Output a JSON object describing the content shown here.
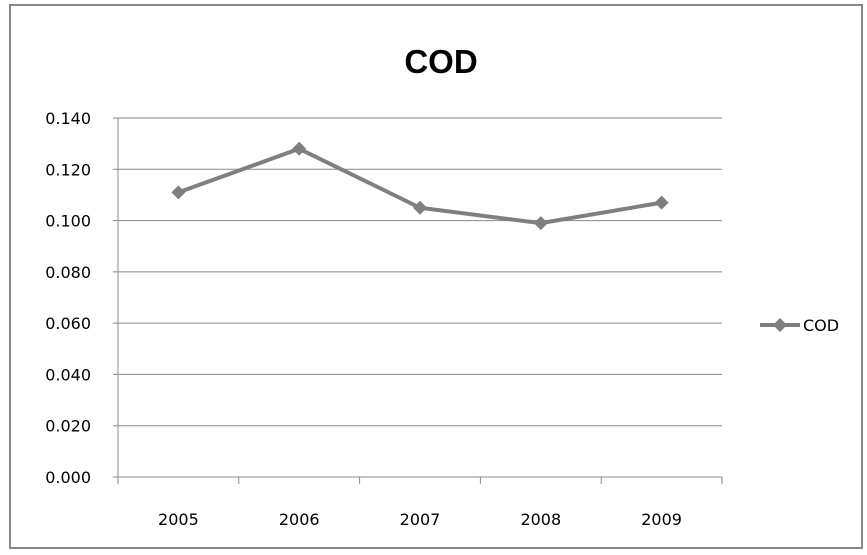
{
  "chart_data": {
    "type": "line",
    "title": "COD",
    "xlabel": "",
    "ylabel": "",
    "categories": [
      "2005",
      "2006",
      "2007",
      "2008",
      "2009"
    ],
    "series": [
      {
        "name": "COD",
        "values": [
          0.111,
          0.128,
          0.105,
          0.099,
          0.107
        ],
        "color": "#7f7f7f"
      }
    ],
    "ylim": [
      0,
      0.14
    ],
    "yticks": [
      "0.000",
      "0.020",
      "0.040",
      "0.060",
      "0.080",
      "0.100",
      "0.120",
      "0.140"
    ],
    "grid": true,
    "legend": "right"
  }
}
